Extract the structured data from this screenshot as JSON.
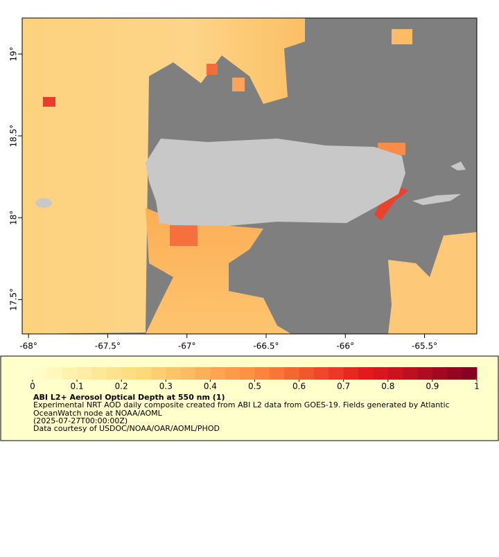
{
  "map": {
    "xlim": [
      -68.04,
      -65.17
    ],
    "ylim": [
      17.29,
      19.22
    ],
    "xticks": [
      {
        "value": -68,
        "label": "-68°"
      },
      {
        "value": -67.5,
        "label": "-67.5°"
      },
      {
        "value": -67,
        "label": "-67°"
      },
      {
        "value": -66.5,
        "label": "-66.5°"
      },
      {
        "value": -66,
        "label": "-66°"
      },
      {
        "value": -65.5,
        "label": "-65.5°"
      }
    ],
    "yticks": [
      {
        "value": 19,
        "label": "19°"
      },
      {
        "value": 18.5,
        "label": "18.5°"
      },
      {
        "value": 18,
        "label": "18°"
      },
      {
        "value": 17.5,
        "label": "17.5°"
      }
    ]
  },
  "colorbar": {
    "lim": [
      0,
      1
    ],
    "ticks": [
      0,
      0.1,
      0.2,
      0.3,
      0.4,
      0.5,
      0.6,
      0.7,
      0.8,
      0.9,
      1
    ]
  },
  "legend": {
    "title": "ABI L2+ Aerosol Optical Depth at 550 nm (1)",
    "lines": [
      "Experimental NRT AOD daily composite created from ABI L2 data from GOES-19. Fields generated by Atlantic",
      "OceanWatch node at NOAA/AOML",
      "(2025-07-27T00:00:00Z)",
      "Data courtesy of USDOC/NOAA/OAR/AOML/PHOD"
    ]
  }
}
